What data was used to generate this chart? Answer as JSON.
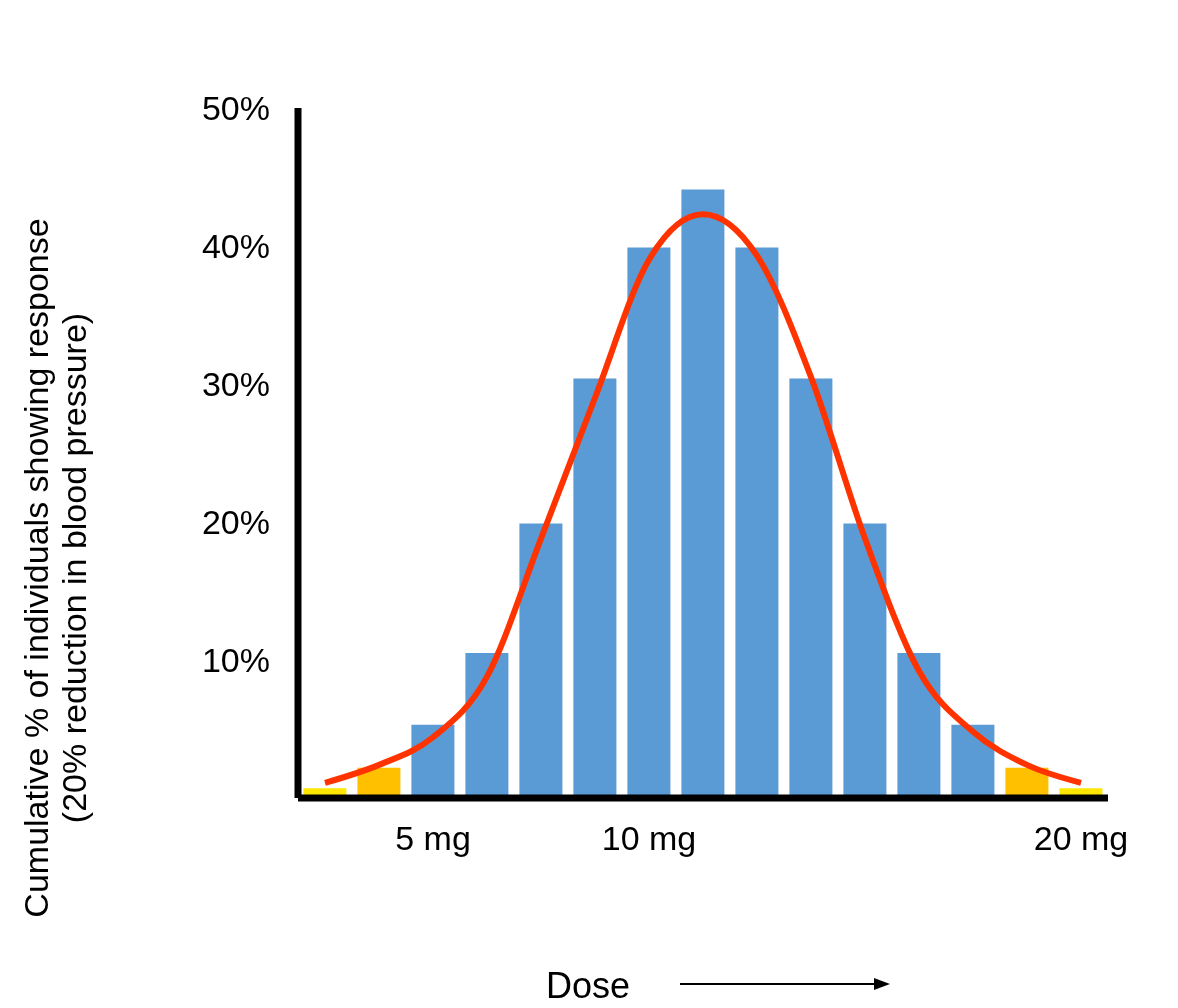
{
  "chart_data": {
    "type": "bar",
    "ylabel": "Cumulative % of individuals showing response\n(20% reduction in blood pressure)",
    "xlabel": "Dose",
    "categories": [
      null,
      null,
      "5 mg",
      null,
      null,
      null,
      "10 mg",
      null,
      null,
      null,
      null,
      null,
      null,
      null,
      "20 mg"
    ],
    "series": [
      {
        "values": [
          0.7,
          2.2,
          5.3,
          10.5,
          19.9,
          30.4,
          39.9,
          44.1,
          39.9,
          30.4,
          19.9,
          10.5,
          5.3,
          2.2,
          0.7
        ],
        "colors": [
          "#ffe600",
          "#ffc000",
          "#5b9bd5",
          "#5b9bd5",
          "#5b9bd5",
          "#5b9bd5",
          "#5b9bd5",
          "#5b9bd5",
          "#5b9bd5",
          "#5b9bd5",
          "#5b9bd5",
          "#5b9bd5",
          "#5b9bd5",
          "#ffc000",
          "#ffe600"
        ]
      },
      {
        "type": "line",
        "color": "#ff3300",
        "values": [
          1.1,
          2.4,
          4.4,
          8.8,
          18.8,
          29,
          39,
          42.3,
          39.3,
          30.5,
          18.8,
          9.2,
          4.8,
          2.4,
          1.1
        ]
      }
    ],
    "ylim": [
      0,
      50
    ],
    "yticks": [
      {
        "value": 0,
        "label": null
      },
      {
        "value": 10,
        "label": "10%"
      },
      {
        "value": 20,
        "label": "20%"
      },
      {
        "value": 30,
        "label": "30%"
      },
      {
        "value": 40,
        "label": "40%"
      },
      {
        "value": 50,
        "label": "50%"
      }
    ],
    "grid": false,
    "legend": false,
    "marker": "none",
    "line_style": "solid"
  }
}
